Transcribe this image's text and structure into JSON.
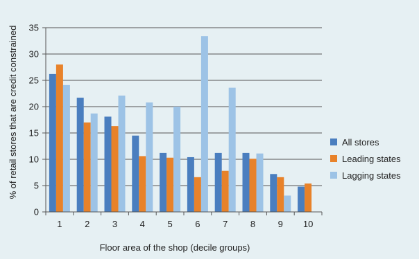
{
  "chart_data": {
    "type": "bar",
    "title": "",
    "xlabel": "Floor area of the shop (decile groups)",
    "ylabel": "% of retail stores that are credit constrained",
    "categories": [
      "1",
      "2",
      "3",
      "4",
      "5",
      "6",
      "7",
      "8",
      "9",
      "10"
    ],
    "ylim": [
      0,
      35
    ],
    "yticks": [
      0,
      5,
      10,
      15,
      20,
      25,
      30,
      35
    ],
    "grid": true,
    "legend_position": "right",
    "series": [
      {
        "name": "All stores",
        "color": "#4a7ebf",
        "values": [
          26.2,
          21.7,
          18.1,
          14.5,
          11.2,
          10.4,
          11.2,
          11.2,
          7.2,
          4.8
        ]
      },
      {
        "name": "Leading states",
        "color": "#e8822a",
        "values": [
          28.0,
          17.0,
          16.3,
          10.6,
          10.3,
          6.6,
          7.8,
          10.1,
          6.6,
          5.4
        ]
      },
      {
        "name": "Lagging states",
        "color": "#9dc3e6",
        "values": [
          24.1,
          18.7,
          22.1,
          20.8,
          20.0,
          33.4,
          23.6,
          11.1,
          3.1,
          null
        ]
      }
    ]
  }
}
